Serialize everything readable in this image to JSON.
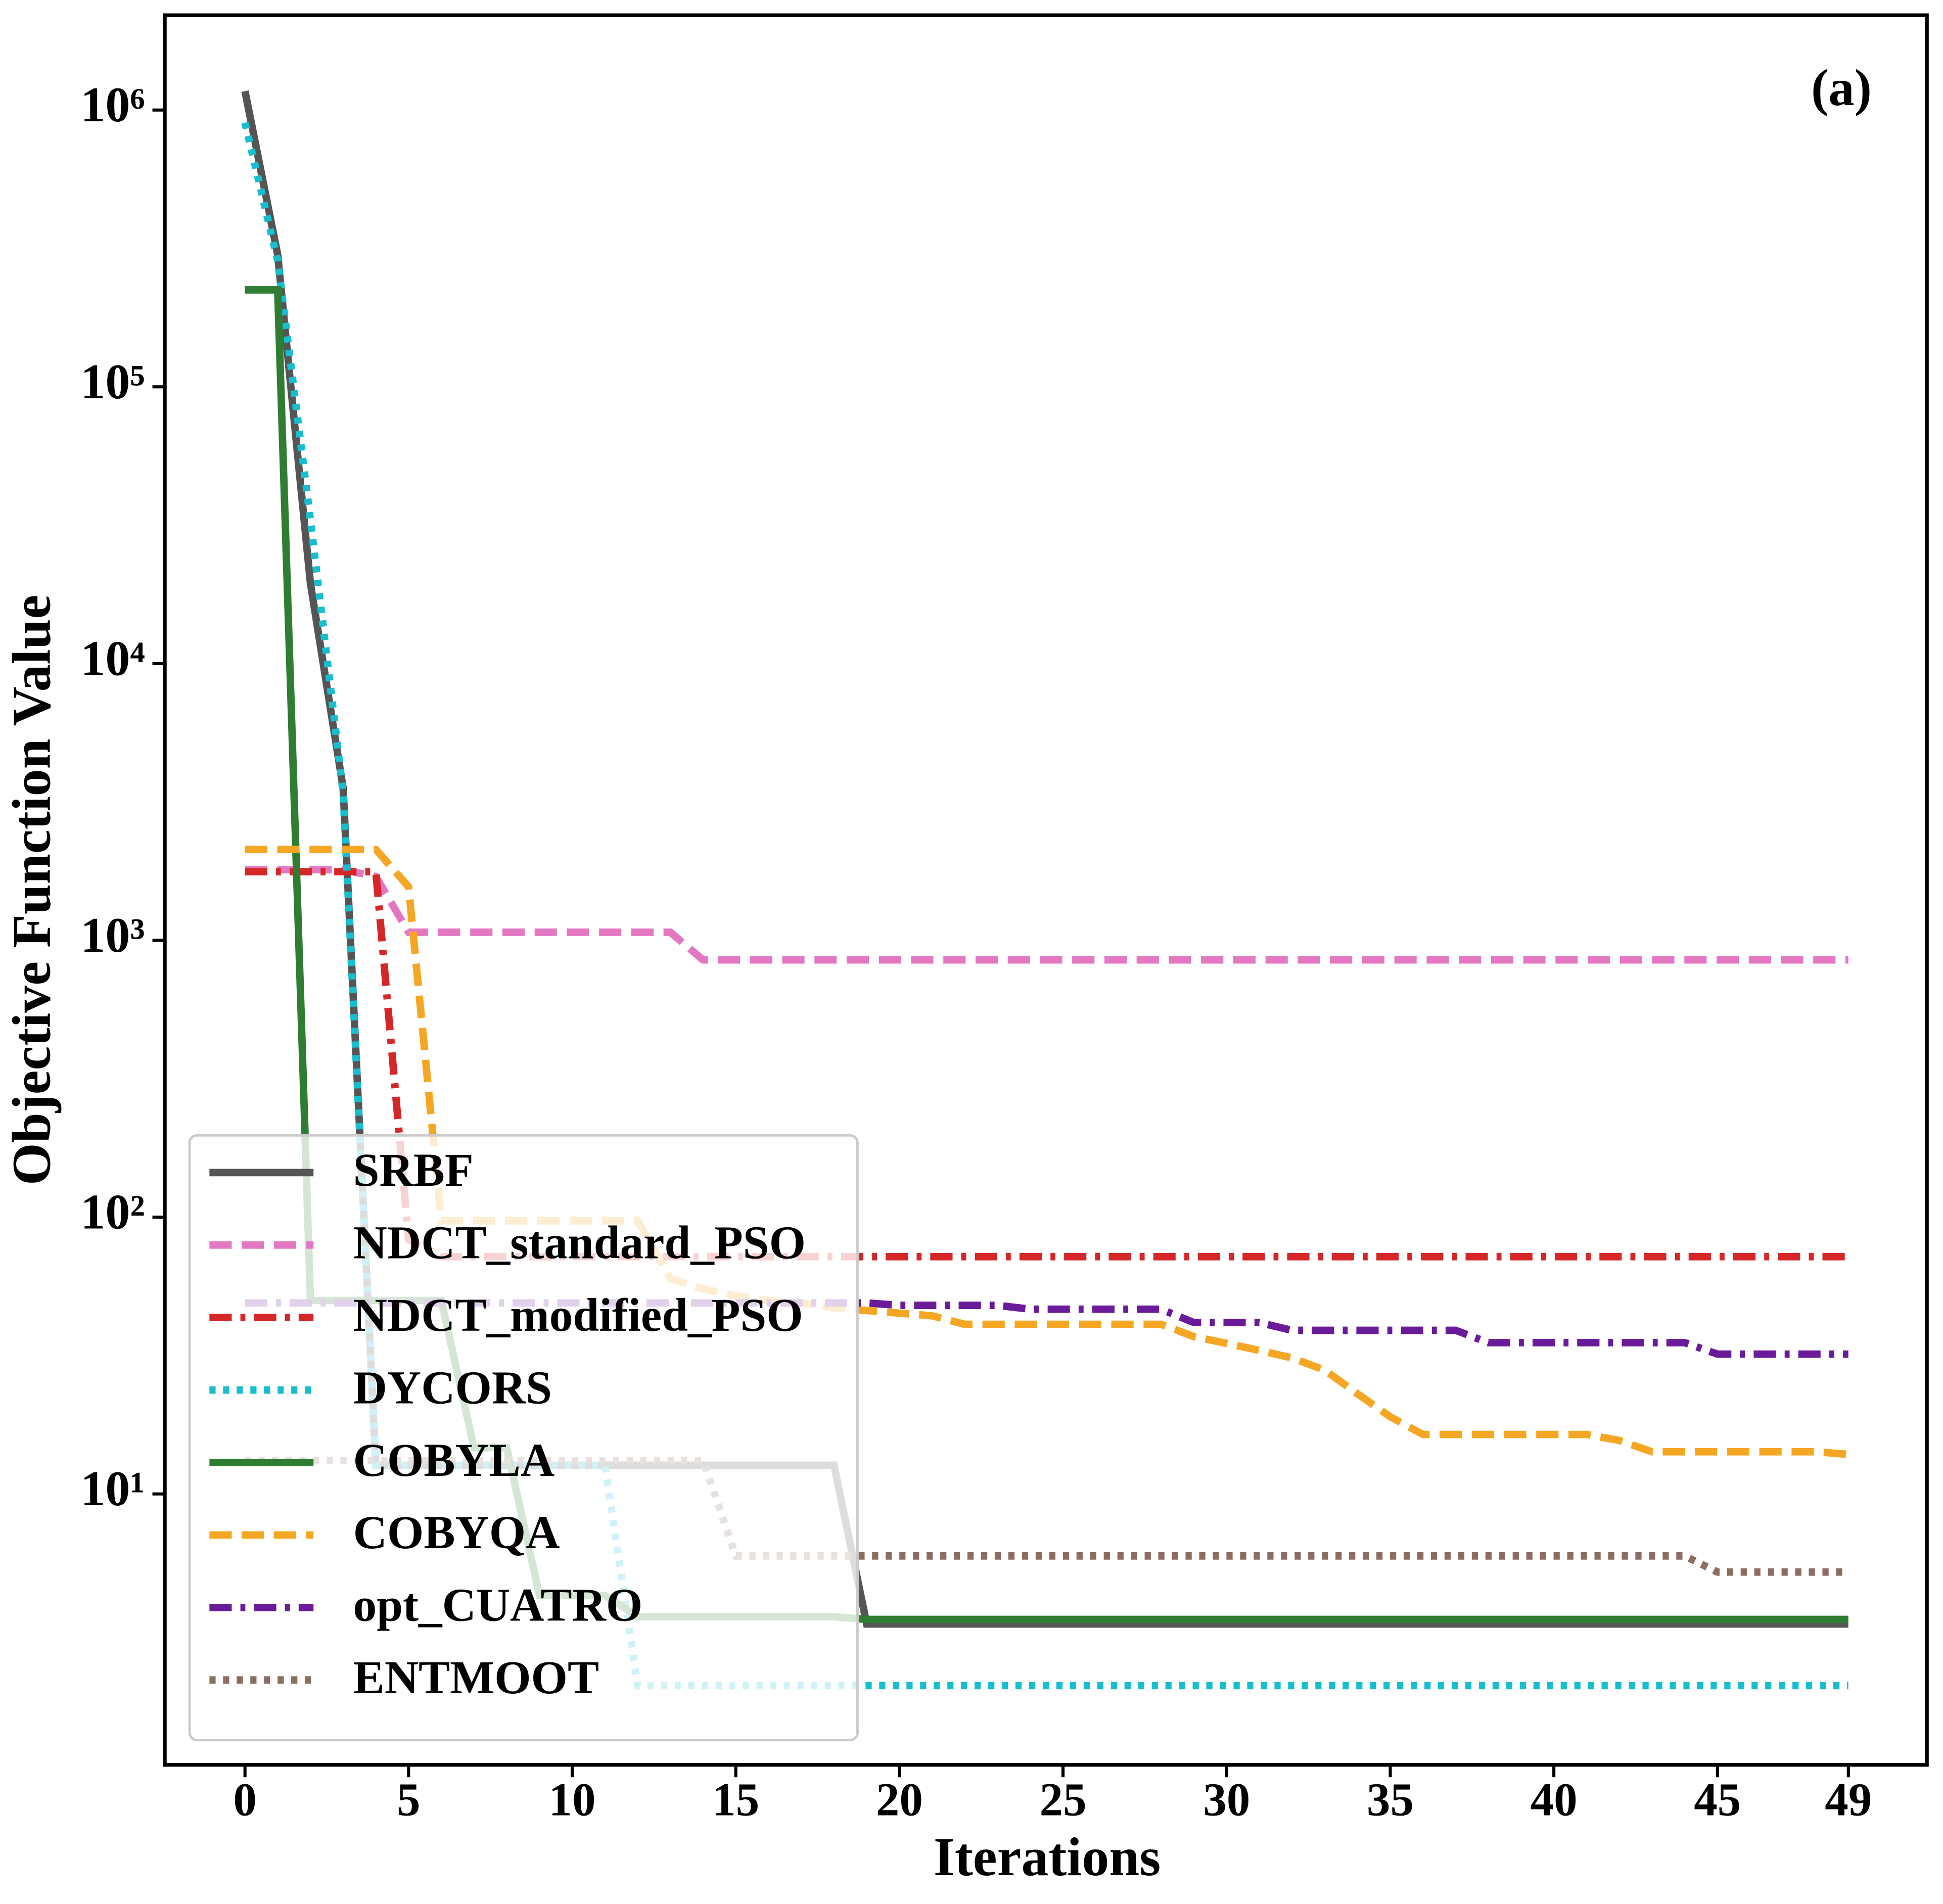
{
  "chart_data": {
    "type": "line",
    "xlabel": "Iterations",
    "ylabel": "Objective Function Value",
    "annotation": "(a)",
    "x": [
      0,
      1,
      2,
      3,
      4,
      5,
      6,
      7,
      8,
      9,
      10,
      11,
      12,
      13,
      14,
      15,
      16,
      17,
      18,
      19,
      20,
      21,
      22,
      23,
      24,
      25,
      26,
      27,
      28,
      29,
      30,
      31,
      32,
      33,
      34,
      35,
      36,
      37,
      38,
      39,
      40,
      41,
      42,
      43,
      44,
      45,
      46,
      47,
      48,
      49
    ],
    "xlim": [
      -2.45,
      51.4
    ],
    "xticks": [
      0,
      5,
      10,
      15,
      20,
      25,
      30,
      35,
      40,
      45,
      49
    ],
    "ylim": [
      1.05,
      2200000
    ],
    "yscale": "log",
    "yticks": [
      {
        "value": 10,
        "label": "10¹"
      },
      {
        "value": 100,
        "label": "10²"
      },
      {
        "value": 1000,
        "label": "10³"
      },
      {
        "value": 10000,
        "label": "10⁴"
      },
      {
        "value": 100000,
        "label": "10⁵"
      },
      {
        "value": 1000000,
        "label": "10⁶"
      }
    ],
    "legend": "lower left",
    "series": [
      {
        "name": "SRBF",
        "color": "#555555",
        "linestyle": "solid",
        "values": [
          1170000,
          300000,
          19500,
          3550,
          12.7,
          12.7,
          12.7,
          12.7,
          12.7,
          12.7,
          12.7,
          12.7,
          12.7,
          12.7,
          12.7,
          12.7,
          12.7,
          12.7,
          12.7,
          3.39,
          3.39,
          3.39,
          3.39,
          3.39,
          3.39,
          3.39,
          3.39,
          3.39,
          3.39,
          3.39,
          3.39,
          3.39,
          3.39,
          3.39,
          3.39,
          3.39,
          3.39,
          3.39,
          3.39,
          3.39,
          3.39,
          3.39,
          3.39,
          3.39,
          3.39,
          3.39,
          3.39,
          3.39,
          3.39,
          3.39
        ]
      },
      {
        "name": "NDCT_standard_PSO",
        "color": "#e377c2",
        "linestyle": "dashed",
        "values": [
          1800,
          1800,
          1800,
          1800,
          1700,
          1070,
          1070,
          1070,
          1070,
          1070,
          1070,
          1070,
          1070,
          1070,
          850,
          850,
          850,
          850,
          850,
          850,
          850,
          850,
          850,
          850,
          850,
          850,
          850,
          850,
          850,
          850,
          850,
          850,
          850,
          850,
          850,
          850,
          850,
          850,
          850,
          850,
          850,
          850,
          850,
          850,
          850,
          850,
          850,
          850,
          850,
          850
        ]
      },
      {
        "name": "NDCT_modified_PSO",
        "color": "#d62728",
        "linestyle": "dashdot",
        "values": [
          1770,
          1770,
          1770,
          1770,
          1770,
          83,
          72,
          72,
          72,
          72,
          72,
          72,
          72,
          72,
          72,
          72,
          72,
          72,
          72,
          72,
          72,
          72,
          72,
          72,
          72,
          72,
          72,
          72,
          72,
          72,
          72,
          72,
          72,
          72,
          72,
          72,
          72,
          72,
          72,
          72,
          72,
          72,
          72,
          72,
          72,
          72,
          72,
          72,
          72,
          72
        ]
      },
      {
        "name": "DYCORS",
        "color": "#17becf",
        "linestyle": "dotted",
        "values": [
          900000,
          285000,
          33000,
          3400,
          12.7,
          12.7,
          12.7,
          12.7,
          12.7,
          12.7,
          12.7,
          12.7,
          2.03,
          2.03,
          2.03,
          2.03,
          2.03,
          2.03,
          2.03,
          2.03,
          2.03,
          2.03,
          2.03,
          2.03,
          2.03,
          2.03,
          2.03,
          2.03,
          2.03,
          2.03,
          2.03,
          2.03,
          2.03,
          2.03,
          2.03,
          2.03,
          2.03,
          2.03,
          2.03,
          2.03,
          2.03,
          2.03,
          2.03,
          2.03,
          2.03,
          2.03,
          2.03,
          2.03,
          2.03,
          2.03
        ]
      },
      {
        "name": "COBYLA",
        "color": "#2e7d32",
        "linestyle": "solid",
        "values": [
          224000,
          224000,
          50,
          50,
          50,
          50,
          50,
          14.7,
          14.7,
          4.3,
          4.3,
          4.3,
          3.6,
          3.6,
          3.6,
          3.6,
          3.6,
          3.6,
          3.6,
          3.52,
          3.52,
          3.52,
          3.52,
          3.52,
          3.52,
          3.52,
          3.52,
          3.52,
          3.52,
          3.52,
          3.52,
          3.52,
          3.52,
          3.52,
          3.52,
          3.52,
          3.52,
          3.52,
          3.52,
          3.52,
          3.52,
          3.52,
          3.52,
          3.52,
          3.52,
          3.52,
          3.52,
          3.52,
          3.52,
          3.52
        ]
      },
      {
        "name": "COBYQA",
        "color": "#f5a623",
        "linestyle": "dashed",
        "values": [
          2130,
          2130,
          2130,
          2130,
          2130,
          1560,
          97,
          97,
          97,
          97,
          97,
          97,
          97,
          60,
          55,
          52,
          50,
          49,
          47,
          46,
          45,
          44,
          41,
          41,
          41,
          41,
          41,
          41,
          41,
          37,
          35,
          33,
          31,
          28,
          23,
          19,
          16.4,
          16.4,
          16.4,
          16.4,
          16.4,
          16.4,
          15.6,
          14.2,
          14.2,
          14.2,
          14.2,
          14.2,
          14.2,
          13.9
        ]
      },
      {
        "name": "opt_CUATRO",
        "color": "#6a1b9a",
        "linestyle": "dashdot",
        "values": [
          49,
          49,
          49,
          49,
          49,
          49,
          49,
          49,
          49,
          49,
          49,
          49,
          49,
          49,
          49,
          49,
          49,
          49,
          49,
          49,
          48,
          48,
          48,
          48,
          46.5,
          46.5,
          46.5,
          46.5,
          46.5,
          41.6,
          41.6,
          41.6,
          39,
          39,
          39,
          39,
          39,
          39,
          35.2,
          35.2,
          35.2,
          35.2,
          35.2,
          35.2,
          35.2,
          32,
          32,
          32,
          32,
          32
        ]
      },
      {
        "name": "ENTMOOT",
        "color": "#8c6d62",
        "linestyle": "dotted",
        "values": [
          13.2,
          13.2,
          13.2,
          13.2,
          13.2,
          13.2,
          13.2,
          13.2,
          13.2,
          13.2,
          13.2,
          13.2,
          13.2,
          13.2,
          13.2,
          5.97,
          5.97,
          5.97,
          5.97,
          5.97,
          5.97,
          5.97,
          5.97,
          5.97,
          5.97,
          5.97,
          5.97,
          5.97,
          5.97,
          5.97,
          5.97,
          5.97,
          5.97,
          5.97,
          5.97,
          5.97,
          5.97,
          5.97,
          5.97,
          5.97,
          5.97,
          5.97,
          5.97,
          5.97,
          5.97,
          5.22,
          5.22,
          5.22,
          5.22,
          5.22
        ]
      }
    ]
  }
}
